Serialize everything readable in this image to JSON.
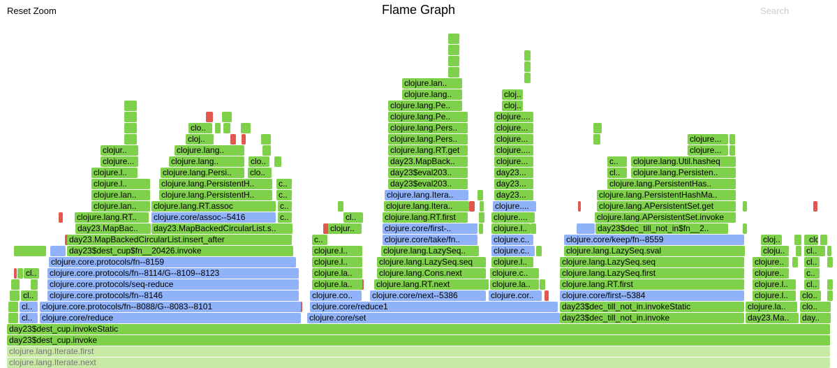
{
  "header": {
    "reset_zoom": "Reset Zoom",
    "title": "Flame Graph",
    "search": "Search"
  },
  "colors": {
    "green": "#7fd04a",
    "blue": "#8fb2f8",
    "red": "#e0584f",
    "faded": "#c7e9a4"
  },
  "labels": [
    "clojure.lan..",
    "clojure.lang..",
    "cloj..",
    "clojure.lang.Pe..",
    "clojure.lang.Pers..",
    "clojure.lang.RT.get",
    "clojure....",
    "clo..",
    "clojure...",
    "clojur..",
    "clojure.lang..",
    "clojure.lang..",
    "c..",
    "clojure.lang.Util.hasheq",
    "clojure.l..",
    "clojure.lang.Persi..",
    "clo..",
    "clojure.l..",
    "cl..",
    "clojure.lang.Persisten..",
    "day23.MapBack..",
    "day23$eval203..",
    "day23...",
    "clojure.lang.PersistentH..",
    "c..",
    "day23$eval203..",
    "clojure.lang.PersistentHas..",
    "clojure.lan..",
    "clojure.lang.PersistentH..",
    "c..",
    "day23...",
    "clojure.lang.PersistentHashMa..",
    "clojure.lan..",
    "clojure.lang.RT.assoc",
    "c..",
    "clojure.lang.Itera..",
    "clojure....",
    "clojure.lang.APersistentSet.get",
    "clojure.lang.RT..",
    "clojure.core/assoc--5416",
    "c..",
    "cl..",
    "clojure.lang.RT.first",
    "clojure....",
    "clojure.lang.APersistentSet.invoke",
    "day23.MapBac..",
    "day23.MapBackedCircularList.s..",
    "c..",
    "clojur..",
    "clojure.core/first-..",
    "clojure.l..",
    "day23$dec_till_not_in$fn__2..",
    "day23.MapBackedCircularList.insert_after",
    "c..",
    "clojure.core/take/fn..",
    "clojure.c..",
    "clojure.core/keep/fn--8559",
    "cloj..",
    "clo..",
    "day23$dest_cup$fn__20426.invoke",
    "clojure.l..",
    "clojure.lang.LazySeq..",
    "clojure.c..",
    "clojure.lang.LazySeq.sval",
    "cloju..",
    "cl..",
    "clojure.core.protocols/fn--8159",
    "clojure.l..",
    "clojure.lang.LazySeq.seq",
    "clojure.l..",
    "clojure.lang.LazySeq.seq",
    "clojure..",
    "cl..",
    "cl..",
    "clojure.core.protocols/fn--8114/G--8109--8123",
    "clojure.la..",
    "clojure.lang.Cons.next",
    "clojure.c..",
    "clojure.lang.LazySeq.first",
    "clojure..",
    "c..",
    "clojure.core.protocols/seq-reduce",
    "clojure.la..",
    "clojure.lang.RT.next",
    "clojure.la..",
    "clojure.lang.RT.first",
    "clojure.l..",
    "cl..",
    "cl..",
    "clojure.core.protocols/fn--8146",
    "clojure.co..",
    "clojure.core/next--5386",
    "clojure.cor..",
    "clojure.core/first--5384",
    "clojure.l..",
    "clo..",
    "cl..",
    "clojure.core.protocols/fn--8088/G--8083--8101",
    "clojure.core/reduce1",
    "day23$dec_till_not_in.invokeStatic",
    "clojure.la..",
    "clo..",
    "cl..",
    "clojure.core/reduce",
    "clojure.core/set",
    "day23$dec_till_not_in.invoke",
    "day23.Ma..",
    "day..",
    "day23$dest_cup.invokeStatic",
    "day23$dest_cup.invoke",
    "clojure.lang.Iterate.first",
    "clojure.lang.Iterate.next"
  ]
}
